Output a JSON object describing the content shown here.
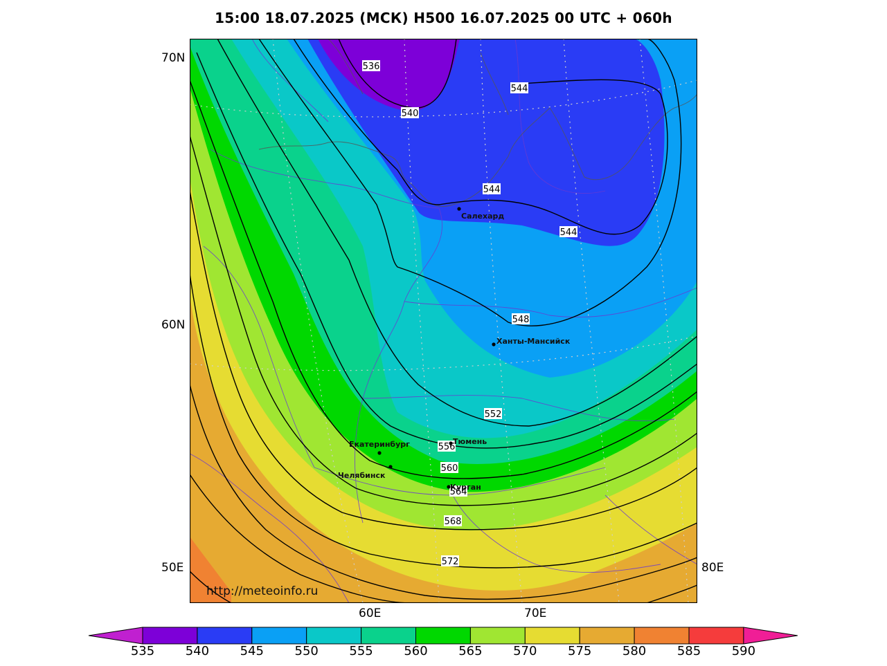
{
  "title": "15:00 18.07.2025 (МСК) H500  16.07.2025 00 UTC + 060h",
  "lat_labels": [
    "70N",
    "60N",
    "50E"
  ],
  "lon_labels": [
    "60E",
    "70E",
    "80E"
  ],
  "credit": "http://meteoinfo.ru",
  "cities": [
    {
      "name": "Салехард"
    },
    {
      "name": "Ханты-Мансийск"
    },
    {
      "name": "Екатеринбург"
    },
    {
      "name": "Тюмень"
    },
    {
      "name": "Челябинск"
    },
    {
      "name": "Курган"
    }
  ],
  "isohypse_labels": [
    "536",
    "540",
    "544",
    "544",
    "544",
    "548",
    "552",
    "556",
    "560",
    "564",
    "568",
    "572"
  ],
  "colorbar": {
    "ticks": [
      "535",
      "540",
      "545",
      "550",
      "555",
      "560",
      "565",
      "570",
      "575",
      "580",
      "585",
      "590"
    ],
    "colors": [
      "#c020d0",
      "#7d00d8",
      "#2a3cf5",
      "#0aa0f5",
      "#0ac8c8",
      "#0ad28c",
      "#00d800",
      "#a0e632",
      "#e6dc32",
      "#e6aa32",
      "#f08232",
      "#f53c3c",
      "#f01e96"
    ]
  }
}
